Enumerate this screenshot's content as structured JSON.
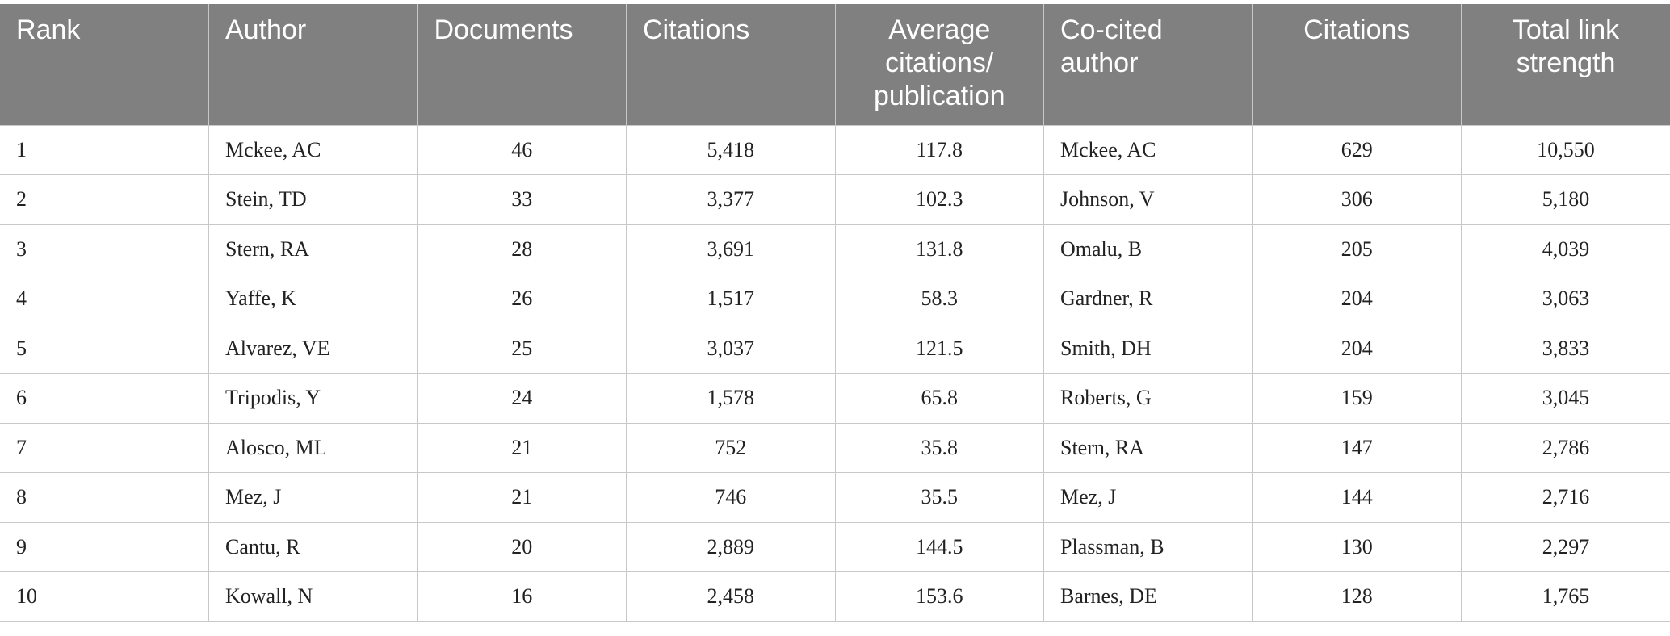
{
  "table": {
    "headers": [
      "Rank",
      "Author",
      "Documents",
      "Citations",
      "Average citations/ publication",
      "Co-cited author",
      "Citations",
      "Total link strength"
    ],
    "rows": [
      [
        "1",
        "Mckee, AC",
        "46",
        "5,418",
        "117.8",
        "Mckee, AC",
        "629",
        "10,550"
      ],
      [
        "2",
        "Stein, TD",
        "33",
        "3,377",
        "102.3",
        "Johnson, V",
        "306",
        "5,180"
      ],
      [
        "3",
        "Stern, RA",
        "28",
        "3,691",
        "131.8",
        "Omalu, B",
        "205",
        "4,039"
      ],
      [
        "4",
        "Yaffe, K",
        "26",
        "1,517",
        "58.3",
        "Gardner, R",
        "204",
        "3,063"
      ],
      [
        "5",
        "Alvarez, VE",
        "25",
        "3,037",
        "121.5",
        "Smith, DH",
        "204",
        "3,833"
      ],
      [
        "6",
        "Tripodis, Y",
        "24",
        "1,578",
        "65.8",
        "Roberts, G",
        "159",
        "3,045"
      ],
      [
        "7",
        "Alosco, ML",
        "21",
        "752",
        "35.8",
        "Stern, RA",
        "147",
        "2,786"
      ],
      [
        "8",
        "Mez, J",
        "21",
        "746",
        "35.5",
        "Mez, J",
        "144",
        "2,716"
      ],
      [
        "9",
        "Cantu, R",
        "20",
        "2,889",
        "144.5",
        "Plassman, B",
        "130",
        "2,297"
      ],
      [
        "10",
        "Kowall, N",
        "16",
        "2,458",
        "153.6",
        "Barnes, DE",
        "128",
        "1,765"
      ]
    ]
  }
}
